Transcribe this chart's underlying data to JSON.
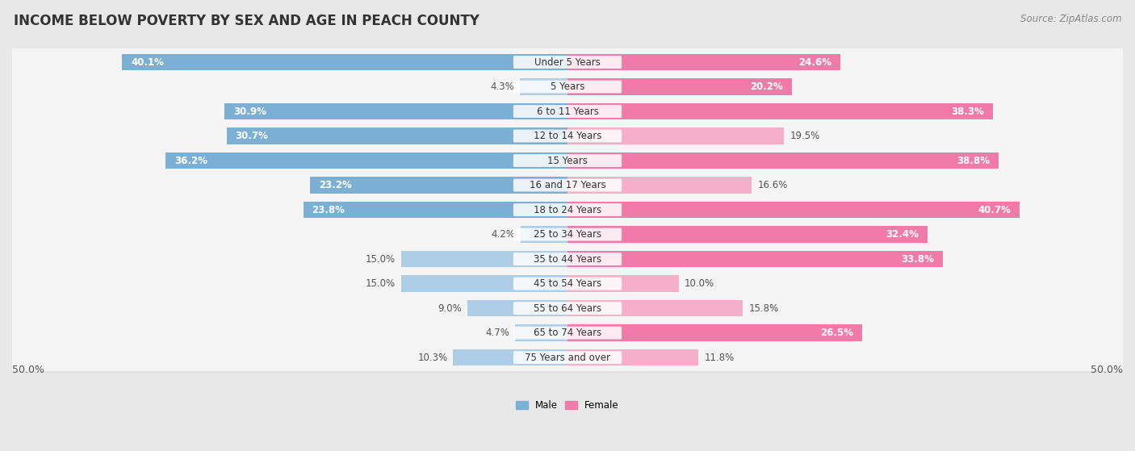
{
  "title": "INCOME BELOW POVERTY BY SEX AND AGE IN PEACH COUNTY",
  "source": "Source: ZipAtlas.com",
  "categories": [
    "Under 5 Years",
    "5 Years",
    "6 to 11 Years",
    "12 to 14 Years",
    "15 Years",
    "16 and 17 Years",
    "18 to 24 Years",
    "25 to 34 Years",
    "35 to 44 Years",
    "45 to 54 Years",
    "55 to 64 Years",
    "65 to 74 Years",
    "75 Years and over"
  ],
  "male_values": [
    40.1,
    4.3,
    30.9,
    30.7,
    36.2,
    23.2,
    23.8,
    4.2,
    15.0,
    15.0,
    9.0,
    4.7,
    10.3
  ],
  "female_values": [
    24.6,
    20.2,
    38.3,
    19.5,
    38.8,
    16.6,
    40.7,
    32.4,
    33.8,
    10.0,
    15.8,
    26.5,
    11.8
  ],
  "male_color": "#7bafd4",
  "male_color_light": "#aecde6",
  "female_color": "#f07aa8",
  "female_color_light": "#f5afc8",
  "male_label": "Male",
  "female_label": "Female",
  "xlim": 50.0,
  "background_color": "#e8e8e8",
  "row_bg_color": "#f5f5f5",
  "row_shadow_color": "#d0d0d0",
  "title_fontsize": 12,
  "source_fontsize": 8.5,
  "label_fontsize": 8.5,
  "cat_fontsize": 8.5,
  "axis_fontsize": 9
}
